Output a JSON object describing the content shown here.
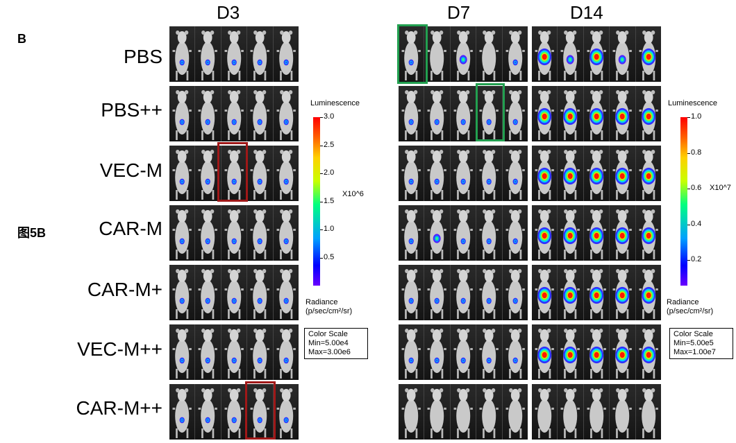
{
  "panel_letter": "B",
  "figure_label": "图5B",
  "timepoints": [
    "D3",
    "D7",
    "D14"
  ],
  "groups": [
    "PBS",
    "PBS++",
    "VEC-M",
    "CAR-M",
    "CAR-M+",
    "VEC-M++",
    "CAR-M++"
  ],
  "scale_left": {
    "title": "Luminescence",
    "ticks": [
      "3.0",
      "2.5",
      "2.0",
      "1.5",
      "1.0",
      "0.5"
    ],
    "unit": "X10^6",
    "radiance_line1": "Radiance",
    "radiance_line2": "(p/sec/cm²/sr)",
    "color_scale_title": "Color Scale",
    "color_scale_min": "Min=5.00e4",
    "color_scale_max": "Max=3.00e6"
  },
  "scale_right": {
    "title": "Luminescence",
    "ticks": [
      "1.0",
      "0.8",
      "0.6",
      "0.4",
      "0.2"
    ],
    "unit": "X10^7",
    "radiance_line1": "Radiance",
    "radiance_line2": "(p/sec/cm²/sr)",
    "color_scale_title": "Color Scale",
    "color_scale_min": "Min=5.00e5",
    "color_scale_max": "Max=1.00e7"
  },
  "highlight_colors": {
    "red": "#a01818",
    "green": "#22a050"
  },
  "signal_levels": {
    "D3": [
      [
        1,
        1,
        1,
        1,
        1
      ],
      [
        1,
        1,
        1,
        1,
        1
      ],
      [
        1,
        1,
        1,
        1,
        1
      ],
      [
        1,
        1,
        1,
        1,
        1
      ],
      [
        1,
        1,
        1,
        1,
        1
      ],
      [
        1,
        1,
        1,
        1,
        1
      ],
      [
        1,
        1,
        1,
        1,
        1
      ]
    ],
    "D7": [
      [
        1,
        0,
        2,
        0,
        1
      ],
      [
        1,
        1,
        1,
        1,
        1
      ],
      [
        1,
        1,
        1,
        1,
        1
      ],
      [
        1,
        2,
        1,
        1,
        1
      ],
      [
        1,
        1,
        1,
        1,
        1
      ],
      [
        1,
        1,
        1,
        1,
        1
      ],
      [
        0,
        0,
        0,
        0,
        0
      ]
    ],
    "D14": [
      [
        3,
        2,
        3,
        2,
        3
      ],
      [
        3,
        3,
        3,
        3,
        3
      ],
      [
        3,
        3,
        3,
        3,
        3
      ],
      [
        3,
        3,
        3,
        3,
        3
      ],
      [
        3,
        3,
        3,
        3,
        3
      ],
      [
        3,
        3,
        3,
        3,
        3
      ],
      [
        0,
        0,
        0,
        0,
        0
      ]
    ]
  }
}
